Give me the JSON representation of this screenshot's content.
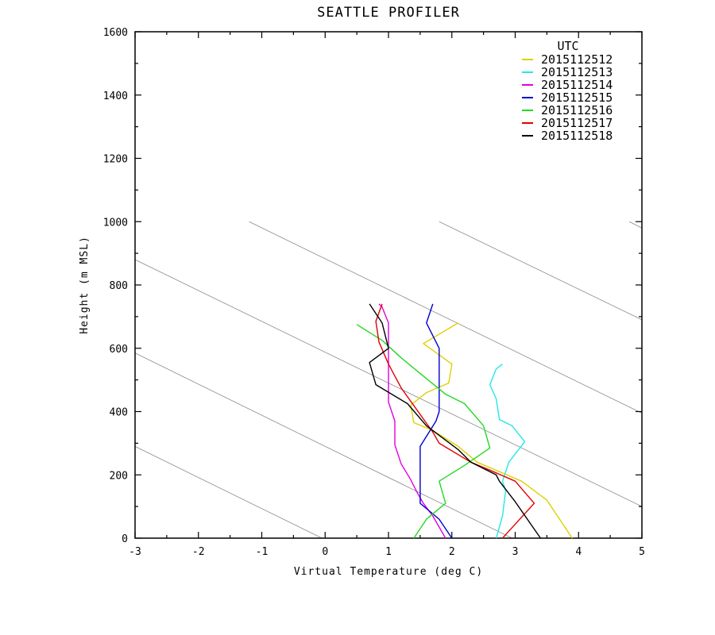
{
  "chart_data": {
    "type": "line",
    "title": "SEATTLE PROFILER",
    "xlabel": "Virtual Temperature (deg C)",
    "ylabel": "Height (m MSL)",
    "xlim": [
      -3,
      5
    ],
    "ylim": [
      0,
      1600
    ],
    "xticks": [
      -3,
      -2,
      -1,
      0,
      1,
      2,
      3,
      4,
      5
    ],
    "xtick_labels": [
      "-3",
      "-2",
      "-1",
      "0",
      "1",
      "2",
      "3",
      "4",
      "5"
    ],
    "yticks": [
      0,
      200,
      400,
      600,
      800,
      1000,
      1200,
      1400,
      1600
    ],
    "ytick_labels": [
      "0",
      "200",
      "400",
      "600",
      "800",
      "1000",
      "1200",
      "1400",
      "1600"
    ],
    "legend_title": "UTC",
    "legend_position": "top-right",
    "grid": false,
    "reference_lines": [
      {
        "points": [
          [
            -3.0,
            290
          ],
          [
            -0.05,
            0
          ]
        ]
      },
      {
        "points": [
          [
            -3.0,
            585
          ],
          [
            2.95,
            0
          ]
        ]
      },
      {
        "points": [
          [
            -3.0,
            880
          ],
          [
            5.0,
            100
          ]
        ]
      },
      {
        "points": [
          [
            -1.2,
            1000
          ],
          [
            5.0,
            395
          ]
        ]
      },
      {
        "points": [
          [
            1.8,
            1000
          ],
          [
            5.0,
            690
          ]
        ]
      },
      {
        "points": [
          [
            4.8,
            1000
          ],
          [
            5.0,
            980
          ]
        ]
      }
    ],
    "series": [
      {
        "name": "2015112512",
        "color": "#e0d000",
        "points": [
          [
            3.9,
            0
          ],
          [
            3.5,
            120
          ],
          [
            3.1,
            180
          ],
          [
            2.4,
            240
          ],
          [
            2.1,
            290
          ],
          [
            1.9,
            315
          ],
          [
            1.7,
            340
          ],
          [
            1.4,
            365
          ],
          [
            1.35,
            420
          ],
          [
            1.6,
            460
          ],
          [
            1.95,
            490
          ],
          [
            2.0,
            550
          ],
          [
            1.55,
            615
          ],
          [
            2.1,
            680
          ]
        ]
      },
      {
        "name": "2015112513",
        "color": "#22e8e8",
        "points": [
          [
            2.7,
            0
          ],
          [
            2.8,
            70
          ],
          [
            2.85,
            150
          ],
          [
            2.8,
            180
          ],
          [
            2.9,
            240
          ],
          [
            3.15,
            305
          ],
          [
            2.95,
            355
          ],
          [
            2.75,
            375
          ],
          [
            2.7,
            440
          ],
          [
            2.6,
            485
          ],
          [
            2.7,
            535
          ],
          [
            2.8,
            550
          ]
        ]
      },
      {
        "name": "2015112514",
        "color": "#e000e0",
        "points": [
          [
            1.9,
            0
          ],
          [
            1.7,
            70
          ],
          [
            1.55,
            110
          ],
          [
            1.45,
            145
          ],
          [
            1.35,
            185
          ],
          [
            1.2,
            235
          ],
          [
            1.1,
            295
          ],
          [
            1.1,
            370
          ],
          [
            1.0,
            430
          ],
          [
            1.0,
            500
          ],
          [
            1.0,
            560
          ],
          [
            1.0,
            680
          ],
          [
            0.9,
            730
          ],
          [
            0.85,
            740
          ]
        ]
      },
      {
        "name": "2015112515",
        "color": "#0000d0",
        "points": [
          [
            2.0,
            0
          ],
          [
            1.8,
            60
          ],
          [
            1.5,
            110
          ],
          [
            1.5,
            290
          ],
          [
            1.75,
            370
          ],
          [
            1.8,
            400
          ],
          [
            1.8,
            600
          ],
          [
            1.6,
            680
          ],
          [
            1.7,
            740
          ]
        ]
      },
      {
        "name": "2015112516",
        "color": "#22d822",
        "points": [
          [
            1.4,
            0
          ],
          [
            1.6,
            60
          ],
          [
            1.9,
            110
          ],
          [
            1.8,
            180
          ],
          [
            2.2,
            230
          ],
          [
            2.6,
            285
          ],
          [
            2.5,
            355
          ],
          [
            2.2,
            425
          ],
          [
            1.9,
            455
          ],
          [
            1.5,
            520
          ],
          [
            1.2,
            570
          ],
          [
            0.9,
            625
          ],
          [
            0.5,
            675
          ]
        ]
      },
      {
        "name": "2015112517",
        "color": "#e00000",
        "points": [
          [
            2.8,
            0
          ],
          [
            3.3,
            110
          ],
          [
            3.0,
            180
          ],
          [
            2.6,
            215
          ],
          [
            2.3,
            240
          ],
          [
            1.8,
            300
          ],
          [
            1.7,
            335
          ],
          [
            1.2,
            475
          ],
          [
            1.0,
            550
          ],
          [
            0.85,
            620
          ],
          [
            0.8,
            685
          ],
          [
            0.9,
            740
          ]
        ]
      },
      {
        "name": "2015112518",
        "color": "#000000",
        "points": [
          [
            3.4,
            0
          ],
          [
            3.0,
            115
          ],
          [
            2.75,
            180
          ],
          [
            2.7,
            200
          ],
          [
            2.3,
            240
          ],
          [
            2.1,
            280
          ],
          [
            1.6,
            355
          ],
          [
            1.3,
            425
          ],
          [
            0.8,
            485
          ],
          [
            0.7,
            555
          ],
          [
            1.0,
            600
          ],
          [
            0.9,
            680
          ],
          [
            0.7,
            740
          ]
        ]
      }
    ]
  }
}
